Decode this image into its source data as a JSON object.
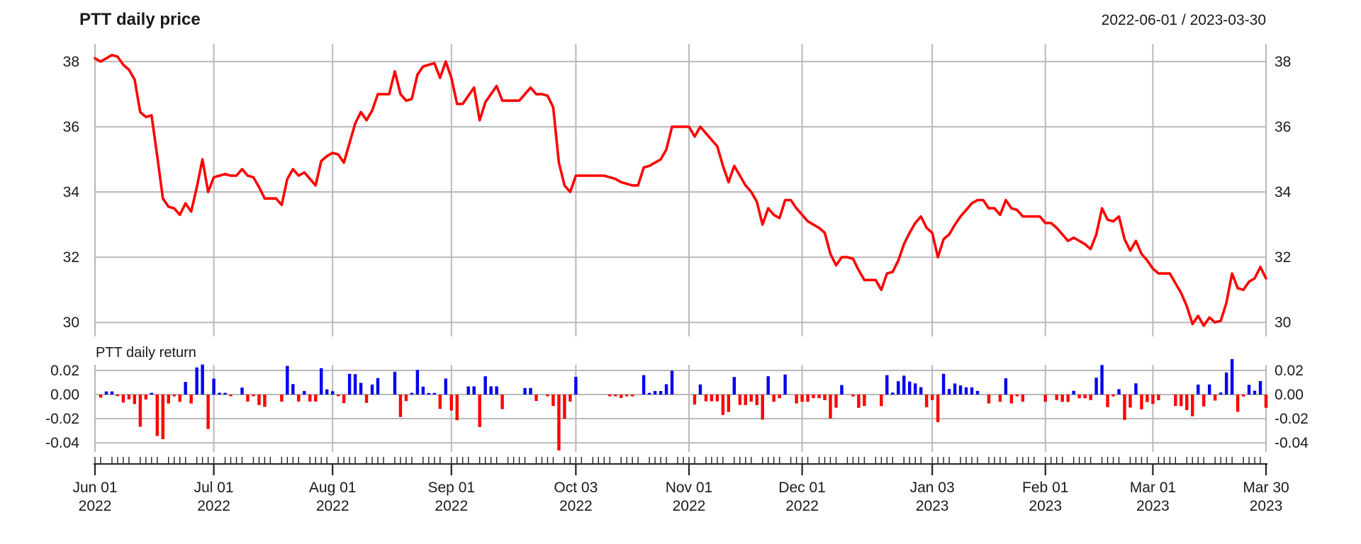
{
  "header": {
    "title": "PTT daily price",
    "date_range": "2022-06-01 / 2023-03-30"
  },
  "chart_data": [
    {
      "type": "line",
      "title": "PTT daily price",
      "subtitle_right": "2022-06-01 / 2023-03-30",
      "xlabel": "",
      "ylabel": "",
      "x_unit": "trading-day index (2022-06-01 to 2023-03-30)",
      "grid": true,
      "legend_position": "none",
      "line_color": "#ff0000",
      "ylim": [
        29.57,
        38.54
      ],
      "yticks": [
        {
          "v": 38,
          "label": "38"
        },
        {
          "v": 36,
          "label": "36"
        },
        {
          "v": 34,
          "label": "34"
        },
        {
          "v": 32,
          "label": "32"
        },
        {
          "v": 30,
          "label": "30"
        }
      ],
      "x_ticks": [
        {
          "index": 0,
          "label": "Jun 01",
          "year": "2022"
        },
        {
          "index": 21,
          "label": "Jul 01",
          "year": "2022"
        },
        {
          "index": 42,
          "label": "Aug 01",
          "year": "2022"
        },
        {
          "index": 63,
          "label": "Sep 01",
          "year": "2022"
        },
        {
          "index": 85,
          "label": "Oct 03",
          "year": "2022"
        },
        {
          "index": 105,
          "label": "Nov 01",
          "year": "2022"
        },
        {
          "index": 125,
          "label": "Dec 01",
          "year": "2022"
        },
        {
          "index": 148,
          "label": "Jan 03",
          "year": "2023"
        },
        {
          "index": 168,
          "label": "Feb 01",
          "year": "2023"
        },
        {
          "index": 187,
          "label": "Mar 01",
          "year": "2023"
        },
        {
          "index": 207,
          "label": "Mar 30",
          "year": "2023"
        }
      ],
      "series": [
        {
          "name": "PTT daily price",
          "values": [
            38.1,
            38.0,
            38.1,
            38.2,
            38.15,
            37.9,
            37.75,
            37.45,
            36.45,
            36.3,
            36.35,
            35.1,
            33.8,
            33.55,
            33.5,
            33.3,
            33.65,
            33.4,
            34.15,
            35.0,
            34.0,
            34.45,
            34.5,
            34.55,
            34.5,
            34.5,
            34.7,
            34.5,
            34.45,
            34.15,
            33.8,
            33.8,
            33.8,
            33.6,
            34.4,
            34.7,
            34.5,
            34.6,
            34.4,
            34.2,
            34.95,
            35.1,
            35.2,
            35.15,
            34.9,
            35.5,
            36.1,
            36.45,
            36.2,
            36.5,
            37.0,
            37.0,
            37.0,
            37.7,
            37.0,
            36.8,
            36.85,
            37.6,
            37.85,
            37.9,
            37.95,
            37.5,
            38.0,
            37.5,
            36.7,
            36.7,
            36.95,
            37.2,
            36.2,
            36.75,
            37.0,
            37.25,
            36.8,
            36.8,
            36.8,
            36.8,
            37.0,
            37.2,
            37.0,
            37.0,
            36.95,
            36.6,
            34.9,
            34.2,
            34.0,
            34.5,
            34.5,
            34.5,
            34.5,
            34.5,
            34.5,
            34.45,
            34.4,
            34.3,
            34.25,
            34.2,
            34.2,
            34.75,
            34.8,
            34.9,
            35.0,
            35.3,
            36.0,
            36.0,
            36.0,
            36.0,
            35.7,
            36.0,
            35.8,
            35.6,
            35.4,
            34.8,
            34.3,
            34.8,
            34.5,
            34.2,
            34.0,
            33.7,
            33.0,
            33.5,
            33.3,
            33.2,
            33.75,
            33.75,
            33.5,
            33.3,
            33.1,
            33.0,
            32.9,
            32.75,
            32.1,
            31.75,
            32.0,
            32.0,
            31.95,
            31.6,
            31.3,
            31.3,
            31.3,
            31.0,
            31.5,
            31.55,
            31.9,
            32.4,
            32.75,
            33.05,
            33.25,
            32.9,
            32.75,
            32.0,
            32.55,
            32.7,
            33.0,
            33.25,
            33.45,
            33.65,
            33.75,
            33.75,
            33.5,
            33.5,
            33.3,
            33.75,
            33.5,
            33.45,
            33.25,
            33.25,
            33.25,
            33.25,
            33.05,
            33.05,
            32.9,
            32.7,
            32.5,
            32.6,
            32.5,
            32.4,
            32.25,
            32.7,
            33.5,
            33.15,
            33.1,
            33.25,
            32.55,
            32.2,
            32.5,
            32.1,
            31.9,
            31.65,
            31.5,
            31.5,
            31.5,
            31.2,
            30.9,
            30.5,
            29.95,
            30.2,
            29.9,
            30.15,
            30.0,
            30.05,
            30.6,
            31.5,
            31.05,
            31.0,
            31.25,
            31.35,
            31.7,
            31.35
          ]
        }
      ]
    },
    {
      "type": "bar",
      "title": "PTT daily return",
      "xlabel": "",
      "ylabel": "",
      "grid": true,
      "positive_color": "#0000ee",
      "negative_color": "#ff0000",
      "ylim": [
        -0.0476,
        0.0247
      ],
      "yticks": [
        {
          "v": 0.02,
          "label": "0.02"
        },
        {
          "v": 0.0,
          "label": "0.00"
        },
        {
          "v": -0.02,
          "label": "-0.02"
        },
        {
          "v": -0.04,
          "label": "-0.04"
        }
      ],
      "values": [
        0,
        -0.0026,
        0.0026,
        0.0026,
        -0.0013,
        -0.0066,
        -0.004,
        -0.0079,
        -0.0267,
        -0.0041,
        0.0014,
        -0.0344,
        -0.037,
        -0.0074,
        -0.0015,
        -0.006,
        0.0105,
        -0.0074,
        0.0225,
        0.0249,
        -0.0286,
        0.0132,
        0.0015,
        0.0014,
        -0.0014,
        0,
        0.0058,
        -0.0058,
        -0.0014,
        -0.0087,
        -0.0102,
        0,
        0,
        -0.0059,
        0.0238,
        0.0087,
        -0.0058,
        0.0029,
        -0.0058,
        -0.0058,
        0.0219,
        0.0043,
        0.0028,
        -0.0014,
        -0.0071,
        0.0172,
        0.0169,
        0.0097,
        -0.0069,
        0.0083,
        0.0137,
        0,
        0,
        0.0189,
        -0.0186,
        -0.0054,
        0.0014,
        0.0204,
        0.0066,
        0.0013,
        0.0013,
        -0.0119,
        0.0133,
        -0.0132,
        -0.0213,
        0,
        0.0068,
        0.0068,
        -0.0269,
        0.0152,
        0.0068,
        0.0068,
        -0.0121,
        0,
        0,
        0,
        0.0054,
        0.0054,
        -0.0054,
        0,
        -0.0014,
        -0.0095,
        -0.0464,
        -0.0201,
        -0.0058,
        0.0147,
        0,
        0,
        0,
        0,
        0,
        -0.0014,
        -0.0015,
        -0.0029,
        -0.0015,
        -0.0015,
        0,
        0.0161,
        0.0014,
        0.0029,
        0.0029,
        0.0086,
        0.0198,
        0,
        0,
        0,
        -0.0083,
        0.0084,
        -0.0056,
        -0.0056,
        -0.0056,
        -0.0169,
        -0.0144,
        0.0146,
        -0.0086,
        -0.0087,
        -0.0058,
        -0.0088,
        -0.0208,
        0.0152,
        -0.006,
        -0.003,
        0.0166,
        0,
        -0.0074,
        -0.006,
        -0.006,
        -0.003,
        -0.003,
        -0.0046,
        -0.0198,
        -0.0109,
        0.0079,
        0,
        -0.0016,
        -0.011,
        -0.0095,
        0,
        0,
        -0.0096,
        0.0161,
        0.0016,
        0.0111,
        0.0157,
        0.0108,
        0.0092,
        0.0061,
        -0.0105,
        -0.0046,
        -0.0229,
        0.0172,
        0.0046,
        0.0092,
        0.0076,
        0.006,
        0.006,
        0.003,
        0,
        -0.0074,
        0,
        -0.006,
        0.0135,
        -0.0074,
        -0.0015,
        -0.006,
        0,
        0,
        0,
        -0.006,
        0,
        -0.0045,
        -0.0061,
        -0.0061,
        0.0031,
        -0.0031,
        -0.0031,
        -0.0046,
        0.014,
        0.0245,
        -0.0104,
        -0.0015,
        0.0045,
        -0.0211,
        -0.0108,
        0.0093,
        -0.0123,
        -0.0062,
        -0.0078,
        -0.0047,
        0,
        0,
        -0.0095,
        -0.0096,
        -0.0129,
        -0.018,
        0.0083,
        -0.0099,
        0.0084,
        -0.005,
        0.0017,
        0.0183,
        0.0294,
        -0.0143,
        -0.0016,
        0.0081,
        0.0032,
        0.0112,
        -0.011
      ]
    }
  ],
  "style": {
    "grid_color": "#b9b9b9",
    "axis_color": "#222222",
    "text_color": "#1a1a1a"
  }
}
